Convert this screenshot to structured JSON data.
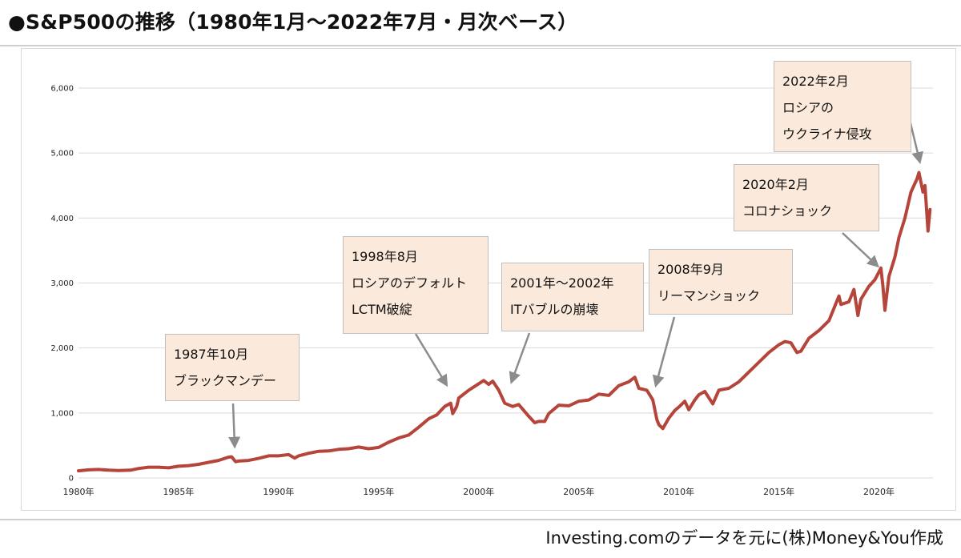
{
  "title": "●S&P500の推移（1980年1月〜2022年7月・月次ベース）",
  "source": "Investing.comのデータを元に(株)Money&You作成",
  "colors": {
    "line": "#b5453b",
    "grid": "#d9d9d9",
    "arrow": "#8c8c8c",
    "box_fill": "#fbeadb"
  },
  "chart_data": {
    "type": "line",
    "title": "●S&P500の推移（1980年1月〜2022年7月・月次ベース）",
    "xlabel": "",
    "ylabel": "",
    "ylim": [
      0,
      6000
    ],
    "xlim": [
      1980,
      2022.7
    ],
    "grid": "horizontal",
    "y_ticks": [
      0,
      1000,
      2000,
      3000,
      4000,
      5000,
      6000
    ],
    "y_tick_labels": [
      "0",
      "1,000",
      "2,000",
      "3,000",
      "4,000",
      "5,000",
      "6,000"
    ],
    "x_ticks": [
      1980,
      1985,
      1990,
      1995,
      2000,
      2005,
      2010,
      2015,
      2020
    ],
    "x_tick_labels": [
      "1980年",
      "1985年",
      "1990年",
      "1995年",
      "2000年",
      "2005年",
      "2010年",
      "2015年",
      "2020年"
    ],
    "series": [
      {
        "name": "",
        "x": [
          1980.0,
          1980.5,
          1981.0,
          1981.5,
          1982.0,
          1982.6,
          1983.0,
          1983.5,
          1984.0,
          1984.5,
          1985.0,
          1985.5,
          1986.0,
          1986.5,
          1987.0,
          1987.5,
          1987.65,
          1987.85,
          1988.0,
          1988.5,
          1989.0,
          1989.5,
          1990.0,
          1990.5,
          1990.8,
          1991.0,
          1991.5,
          1992.0,
          1992.5,
          1993.0,
          1993.5,
          1994.0,
          1994.5,
          1995.0,
          1995.5,
          1996.0,
          1996.5,
          1997.0,
          1997.5,
          1997.9,
          1998.3,
          1998.6,
          1998.7,
          1998.9,
          1999.0,
          1999.5,
          2000.0,
          2000.25,
          2000.5,
          2000.7,
          2001.0,
          2001.3,
          2001.7,
          2002.0,
          2002.5,
          2002.8,
          2003.0,
          2003.3,
          2003.5,
          2004.0,
          2004.5,
          2005.0,
          2005.5,
          2006.0,
          2006.5,
          2007.0,
          2007.5,
          2007.8,
          2008.0,
          2008.4,
          2008.7,
          2008.9,
          2009.0,
          2009.2,
          2009.5,
          2009.8,
          2010.0,
          2010.3,
          2010.5,
          2010.8,
          2011.0,
          2011.3,
          2011.7,
          2012.0,
          2012.5,
          2013.0,
          2013.5,
          2014.0,
          2014.5,
          2015.0,
          2015.3,
          2015.6,
          2015.9,
          2016.1,
          2016.5,
          2017.0,
          2017.5,
          2018.0,
          2018.1,
          2018.5,
          2018.75,
          2018.95,
          2019.1,
          2019.5,
          2019.8,
          2020.1,
          2020.2,
          2020.3,
          2020.5,
          2020.8,
          2021.0,
          2021.3,
          2021.6,
          2021.9,
          2022.0,
          2022.2,
          2022.3,
          2022.45,
          2022.55
        ],
        "values": [
          110,
          125,
          130,
          120,
          115,
          120,
          145,
          165,
          165,
          155,
          180,
          190,
          210,
          240,
          270,
          320,
          325,
          250,
          260,
          270,
          300,
          340,
          340,
          360,
          305,
          340,
          380,
          410,
          415,
          440,
          450,
          475,
          450,
          470,
          550,
          615,
          660,
          780,
          910,
          970,
          1100,
          1150,
          990,
          1100,
          1230,
          1350,
          1450,
          1500,
          1440,
          1490,
          1350,
          1150,
          1100,
          1130,
          950,
          850,
          870,
          870,
          990,
          1120,
          1110,
          1180,
          1200,
          1290,
          1270,
          1420,
          1480,
          1550,
          1380,
          1350,
          1200,
          900,
          820,
          760,
          920,
          1040,
          1090,
          1180,
          1050,
          1200,
          1280,
          1330,
          1140,
          1350,
          1380,
          1480,
          1630,
          1780,
          1930,
          2050,
          2100,
          2080,
          1930,
          1950,
          2150,
          2270,
          2420,
          2800,
          2670,
          2710,
          2900,
          2500,
          2750,
          2950,
          3050,
          3230,
          2950,
          2580,
          3100,
          3400,
          3700,
          4000,
          4400,
          4600,
          4700,
          4400,
          4500,
          3800,
          4130
        ]
      }
    ],
    "annotations": [
      {
        "lines": [
          "1987年10月",
          "ブラックマンデー"
        ],
        "point": [
          1987.8,
          540
        ]
      },
      {
        "lines": [
          "1998年8月",
          "ロシアのデフォルト",
          "LCTM破綻"
        ],
        "point": [
          1998.3,
          1480
        ]
      },
      {
        "lines": [
          "2001年〜2002年",
          "ITバブルの崩壊"
        ],
        "point": [
          2001.7,
          1530
        ]
      },
      {
        "lines": [
          "2008年9月",
          "リーマンショック"
        ],
        "point": [
          2008.9,
          1480
        ]
      },
      {
        "lines": [
          "2020年2月",
          "コロナショック"
        ],
        "point": [
          2019.8,
          3300
        ]
      },
      {
        "lines": [
          "2022年2月",
          "ロシアの",
          "ウクライナ侵攻"
        ],
        "point": [
          2022.0,
          4920
        ]
      }
    ]
  }
}
